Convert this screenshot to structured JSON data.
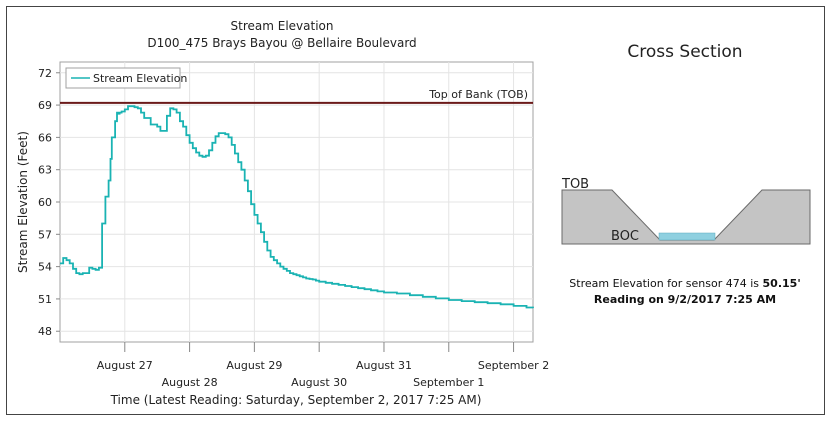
{
  "chart_data": {
    "type": "line",
    "title": "Stream Elevation",
    "subtitle": "D100_475 Brays Bayou @ Bellaire Boulevard",
    "xlabel": "Time (Latest Reading: Saturday, September 2, 2017 7:25 AM)",
    "ylabel": "Stream Elevation (Feet)",
    "ylim": [
      47,
      73
    ],
    "yticks": [
      48,
      51,
      54,
      57,
      60,
      63,
      66,
      69,
      72
    ],
    "xlim": [
      26.0,
      33.3
    ],
    "xticks": [
      {
        "x": 27,
        "label": "August 27",
        "row": 0
      },
      {
        "x": 28,
        "label": "August 28",
        "row": 1
      },
      {
        "x": 29,
        "label": "August 29",
        "row": 0
      },
      {
        "x": 30,
        "label": "August 30",
        "row": 1
      },
      {
        "x": 31,
        "label": "August 31",
        "row": 0
      },
      {
        "x": 32,
        "label": "September 1",
        "row": 1
      },
      {
        "x": 33,
        "label": "September 2",
        "row": 0
      }
    ],
    "grid": true,
    "legend": {
      "position": "top-left",
      "entries": [
        "Stream Elevation"
      ]
    },
    "reference_line": {
      "label": "Top of Bank (TOB)",
      "y": 69.2,
      "color": "#6b1a1a"
    },
    "series": [
      {
        "name": "Stream Elevation",
        "color": "#1ab3b3",
        "x": [
          26.0,
          26.05,
          26.1,
          26.15,
          26.2,
          26.25,
          26.3,
          26.35,
          26.45,
          26.5,
          26.55,
          26.6,
          26.65,
          26.7,
          26.75,
          26.78,
          26.8,
          26.85,
          26.88,
          26.9,
          26.92,
          26.95,
          27.0,
          27.05,
          27.1,
          27.15,
          27.2,
          27.25,
          27.3,
          27.4,
          27.5,
          27.55,
          27.6,
          27.65,
          27.7,
          27.75,
          27.8,
          27.85,
          27.9,
          27.95,
          28.0,
          28.05,
          28.1,
          28.15,
          28.2,
          28.25,
          28.3,
          28.35,
          28.4,
          28.45,
          28.5,
          28.55,
          28.6,
          28.65,
          28.7,
          28.75,
          28.8,
          28.85,
          28.9,
          28.95,
          29.0,
          29.05,
          29.1,
          29.15,
          29.2,
          29.25,
          29.3,
          29.35,
          29.4,
          29.45,
          29.5,
          29.55,
          29.6,
          29.65,
          29.7,
          29.75,
          29.8,
          29.85,
          29.9,
          29.95,
          30.0,
          30.1,
          30.2,
          30.3,
          30.4,
          30.5,
          30.6,
          30.7,
          30.8,
          30.9,
          31.0,
          31.2,
          31.4,
          31.6,
          31.8,
          32.0,
          32.2,
          32.4,
          32.6,
          32.8,
          33.0,
          33.2,
          33.3
        ],
        "y": [
          54.3,
          54.8,
          54.6,
          54.3,
          53.8,
          53.4,
          53.3,
          53.4,
          53.9,
          53.8,
          53.7,
          53.9,
          58.0,
          60.5,
          62.0,
          64.0,
          66.0,
          67.5,
          68.3,
          68.2,
          68.3,
          68.4,
          68.6,
          68.9,
          68.9,
          68.8,
          68.7,
          68.3,
          67.8,
          67.2,
          67.0,
          66.6,
          66.6,
          68.0,
          68.7,
          68.6,
          68.3,
          67.5,
          67.0,
          66.2,
          65.5,
          65.0,
          64.6,
          64.3,
          64.2,
          64.3,
          64.8,
          65.5,
          66.1,
          66.4,
          66.4,
          66.3,
          66.0,
          65.3,
          64.5,
          63.7,
          63.0,
          62.0,
          61.0,
          59.8,
          58.8,
          58.0,
          57.2,
          56.3,
          55.5,
          54.9,
          54.6,
          54.3,
          54.0,
          53.8,
          53.6,
          53.4,
          53.3,
          53.2,
          53.1,
          53.0,
          52.9,
          52.85,
          52.8,
          52.7,
          52.6,
          52.5,
          52.4,
          52.3,
          52.2,
          52.1,
          52.0,
          51.9,
          51.8,
          51.7,
          51.6,
          51.5,
          51.35,
          51.2,
          51.05,
          50.9,
          50.8,
          50.7,
          50.6,
          50.5,
          50.35,
          50.2,
          50.15
        ]
      }
    ]
  },
  "cross_section": {
    "title": "Cross Section",
    "tob_label": "TOB",
    "boc_label": "BOC",
    "ground_color": "#c4c4c4",
    "water_color": "#8fd0e0"
  },
  "reading": {
    "prefix": "Stream Elevation for sensor 474 is ",
    "value": "50.15'",
    "time_line": "Reading on 9/2/2017 7:25 AM"
  }
}
